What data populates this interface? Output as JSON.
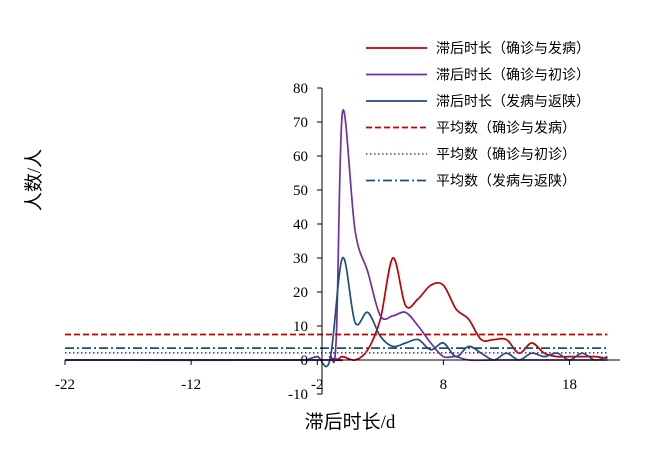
{
  "chart_data": {
    "type": "line",
    "xlabel": "滞后时长/d",
    "ylabel": "人数/人",
    "xlim": [
      -22,
      22
    ],
    "ylim": [
      -10,
      80
    ],
    "x_ticks": [
      -22,
      -12,
      -2,
      8,
      18
    ],
    "y_ticks": [
      -10,
      0,
      10,
      20,
      30,
      40,
      50,
      60,
      70,
      80
    ],
    "grid": false,
    "legend_position": "top-right",
    "series": [
      {
        "name": "滞后时长（确诊与发病）",
        "color": "#c00000",
        "style": "solid",
        "points": [
          [
            -22,
            0
          ],
          [
            -2,
            0
          ],
          [
            -0.5,
            0
          ],
          [
            0,
            1
          ],
          [
            1,
            0
          ],
          [
            2,
            3
          ],
          [
            3,
            12
          ],
          [
            4,
            30
          ],
          [
            5,
            16
          ],
          [
            6,
            18
          ],
          [
            7,
            22
          ],
          [
            8,
            22
          ],
          [
            9,
            15
          ],
          [
            10,
            12
          ],
          [
            11,
            6
          ],
          [
            12,
            6
          ],
          [
            13,
            6
          ],
          [
            14,
            2
          ],
          [
            15,
            5
          ],
          [
            16,
            2
          ],
          [
            17,
            1
          ],
          [
            18,
            1
          ],
          [
            19,
            1
          ],
          [
            20,
            1
          ],
          [
            21,
            0.5
          ]
        ]
      },
      {
        "name": "滞后时长（确诊与初诊）",
        "color": "#7030a0",
        "style": "solid",
        "points": [
          [
            -22,
            0
          ],
          [
            -2,
            0
          ],
          [
            -1,
            1
          ],
          [
            -0.5,
            6
          ],
          [
            0,
            73
          ],
          [
            1,
            38
          ],
          [
            2,
            26
          ],
          [
            3,
            13
          ],
          [
            4,
            13
          ],
          [
            5,
            14
          ],
          [
            6,
            10
          ],
          [
            7,
            5
          ],
          [
            8,
            1
          ],
          [
            9,
            1
          ],
          [
            10,
            0
          ],
          [
            12,
            0
          ],
          [
            14,
            0
          ],
          [
            16,
            0
          ],
          [
            18,
            0
          ],
          [
            20,
            0
          ],
          [
            21,
            0
          ]
        ]
      },
      {
        "name": "滞后时长（发病与返陕）",
        "color": "#1f4e79",
        "style": "solid",
        "points": [
          [
            -22,
            0
          ],
          [
            -5,
            0
          ],
          [
            -3,
            0
          ],
          [
            -2,
            1
          ],
          [
            -1,
            0
          ],
          [
            0,
            30
          ],
          [
            1,
            11
          ],
          [
            2,
            14
          ],
          [
            3,
            7
          ],
          [
            4,
            4
          ],
          [
            5,
            5
          ],
          [
            6,
            6
          ],
          [
            7,
            3
          ],
          [
            8,
            5
          ],
          [
            9,
            1
          ],
          [
            10,
            4
          ],
          [
            11,
            2
          ],
          [
            12,
            0
          ],
          [
            13,
            2
          ],
          [
            14,
            0
          ],
          [
            15,
            2
          ],
          [
            16,
            1
          ],
          [
            17,
            2
          ],
          [
            18,
            0
          ],
          [
            19,
            2
          ],
          [
            20,
            0
          ],
          [
            21,
            1
          ]
        ]
      },
      {
        "name": "平均数（确诊与发病）",
        "color": "#c00000",
        "style": "dashed",
        "points": [
          [
            -22,
            7.5
          ],
          [
            21,
            7.5
          ]
        ]
      },
      {
        "name": "平均数（确诊与初诊）",
        "color": "#7030a0",
        "style": "dotted",
        "points": [
          [
            -22,
            2.1
          ],
          [
            21,
            2.1
          ]
        ]
      },
      {
        "name": "平均数（发病与返陕）",
        "color": "#1f4e79",
        "style": "dashdot",
        "points": [
          [
            -22,
            3.5
          ],
          [
            21,
            3.5
          ]
        ]
      }
    ]
  }
}
